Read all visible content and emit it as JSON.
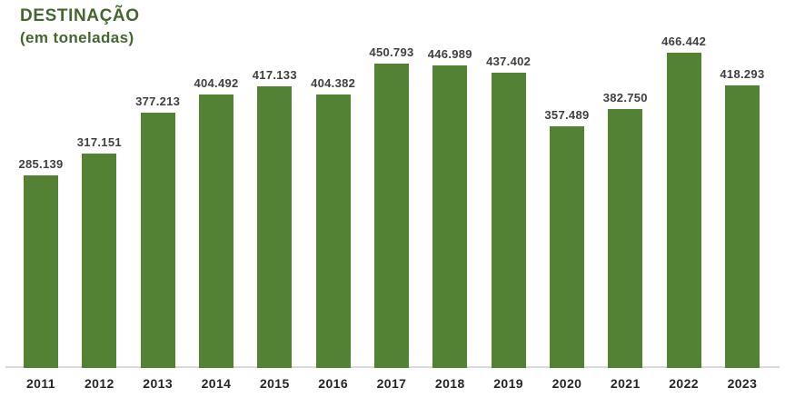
{
  "title": "DESTINAÇÃO",
  "subtitle": "(em toneladas)",
  "colors": {
    "bar": "#548235",
    "title_text": "#44672E",
    "value_label": "#3F3F3F",
    "year_label": "#262626",
    "axis_line": "#D9D9D9",
    "background": "#FFFFFF"
  },
  "chart_data": {
    "type": "bar",
    "title": "DESTINAÇÃO",
    "subtitle": "(em toneladas)",
    "categories": [
      "2011",
      "2012",
      "2013",
      "2014",
      "2015",
      "2016",
      "2017",
      "2018",
      "2019",
      "2020",
      "2021",
      "2022",
      "2023"
    ],
    "values": [
      285139,
      317151,
      377213,
      404492,
      417133,
      404382,
      450793,
      446989,
      437402,
      357489,
      382750,
      466442,
      418293
    ],
    "value_labels": [
      "285.139",
      "317.151",
      "377.213",
      "404.492",
      "417.133",
      "404.382",
      "450.793",
      "446.989",
      "437.402",
      "357.489",
      "382.750",
      "466.442",
      "418.293"
    ],
    "xlabel": "",
    "ylabel": "",
    "ylim": [
      0,
      466442
    ],
    "grid": false,
    "legend": false,
    "data_labels": true,
    "bar_color": "#548235"
  }
}
